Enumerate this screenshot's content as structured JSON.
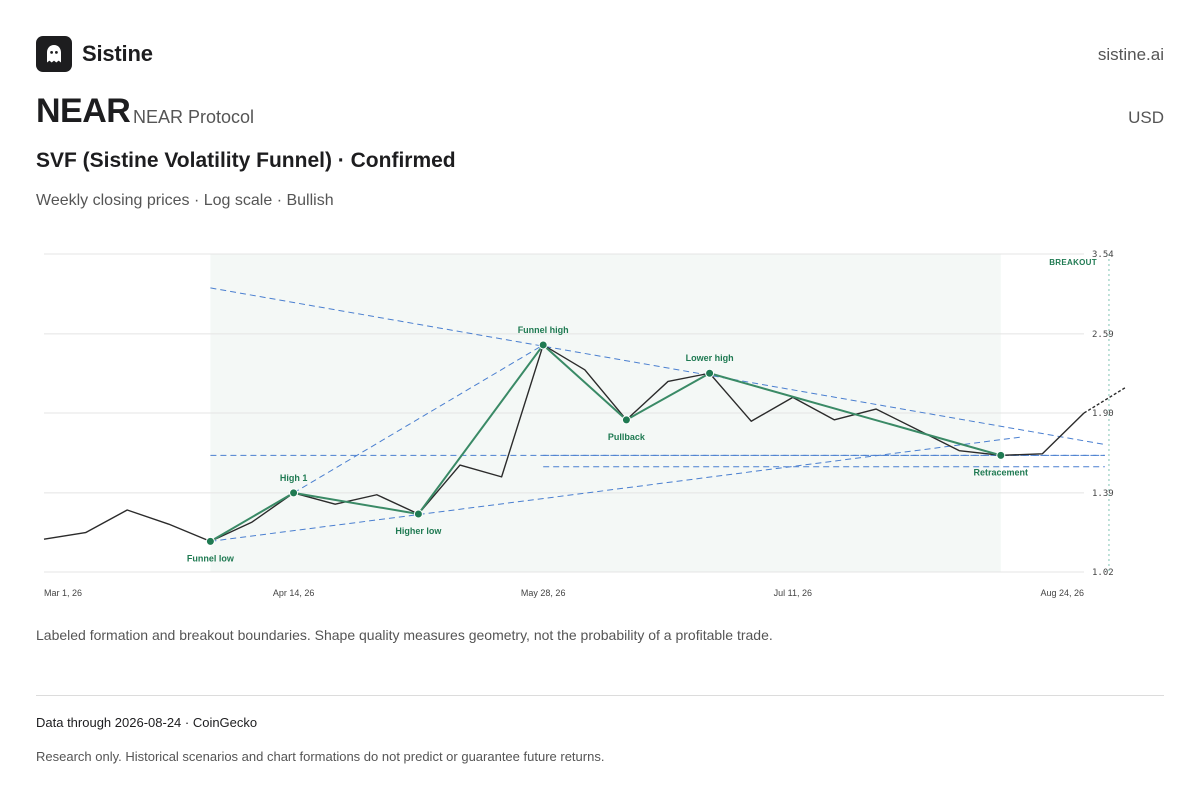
{
  "header": {
    "brand": "Sistine",
    "site": "sistine.ai",
    "logo_icon": "ghost-icon"
  },
  "asset": {
    "ticker": "NEAR",
    "name": "NEAR Protocol",
    "currency": "USD"
  },
  "pattern": {
    "title": "SVF (Sistine Volatility Funnel) · Confirmed",
    "subtitle": "Weekly closing prices · Log scale · Bullish"
  },
  "caption": "Labeled formation and breakout boundaries. Shape quality measures geometry, not the probability of a profitable trade.",
  "footer": {
    "data_through": "Data through 2026-08-24 · CoinGecko",
    "disclaimer": "Research only. Historical scenarios and chart formations do not predict or guarantee future returns."
  },
  "chart_data": {
    "type": "line",
    "scale": "log",
    "ylim": [
      1.02,
      3.54
    ],
    "y_ticks": [
      "3.54",
      "2.59",
      "1.90",
      "1.39",
      "1.02"
    ],
    "y_tick_values": [
      3.54,
      2.59,
      1.9,
      1.39,
      1.02
    ],
    "x_tick_labels": [
      "Mar 1, 26",
      "Apr 14, 26",
      "May 28, 26",
      "Jul 11, 26",
      "Aug 24, 26"
    ],
    "x_tick_index": [
      0,
      6,
      12,
      18,
      25
    ],
    "grid": true,
    "colors": {
      "price": "#2b2b2b",
      "pattern": "#3a8a66",
      "pivot": "#1f7a52",
      "boundary": "#4a7fd0",
      "breakout": "#7fc4b4",
      "zone": "#f4f8f6",
      "label": "#1f7a52"
    },
    "series": [
      {
        "values": [
          1.16,
          1.19,
          1.3,
          1.23,
          1.15,
          1.24,
          1.39,
          1.33,
          1.38,
          1.28,
          1.55,
          1.48,
          2.48,
          2.25,
          1.85,
          2.15,
          2.22,
          1.84,
          2.02,
          1.85,
          1.93,
          1.78,
          1.64,
          1.61,
          1.62,
          1.9
        ]
      }
    ],
    "last_point": {
      "index": 26,
      "value": 2.1
    },
    "formation_zone": {
      "start_index": 4,
      "end_index": 23
    },
    "breakout_index": 25.6,
    "breakout_label": "BREAKOUT",
    "pivots": [
      {
        "index": 4,
        "value": 1.15,
        "label": "Funnel low",
        "label_pos": "below"
      },
      {
        "index": 6,
        "value": 1.39,
        "label": "High 1",
        "label_pos": "above"
      },
      {
        "index": 9,
        "value": 1.28,
        "label": "Higher low",
        "label_pos": "below"
      },
      {
        "index": 12,
        "value": 2.48,
        "label": "Funnel high",
        "label_pos": "above"
      },
      {
        "index": 14,
        "value": 1.85,
        "label": "Pullback",
        "label_pos": "below"
      },
      {
        "index": 16,
        "value": 2.22,
        "label": "Lower high",
        "label_pos": "above"
      },
      {
        "index": 23,
        "value": 1.61,
        "label": "Retracement",
        "label_pos": "below"
      }
    ],
    "boundaries": [
      {
        "from": [
          4,
          3.1
        ],
        "to": [
          25.5,
          1.68
        ]
      },
      {
        "from": [
          4,
          1.15
        ],
        "to": [
          23.5,
          1.73
        ]
      },
      {
        "from": [
          6,
          1.39
        ],
        "to": [
          12,
          2.48
        ]
      },
      {
        "from": [
          4,
          1.61
        ],
        "to": [
          25.5,
          1.61
        ]
      },
      {
        "from": [
          12,
          1.61
        ],
        "to": [
          25.5,
          1.61
        ]
      },
      {
        "from": [
          12,
          1.54
        ],
        "to": [
          25.5,
          1.54
        ]
      }
    ]
  }
}
